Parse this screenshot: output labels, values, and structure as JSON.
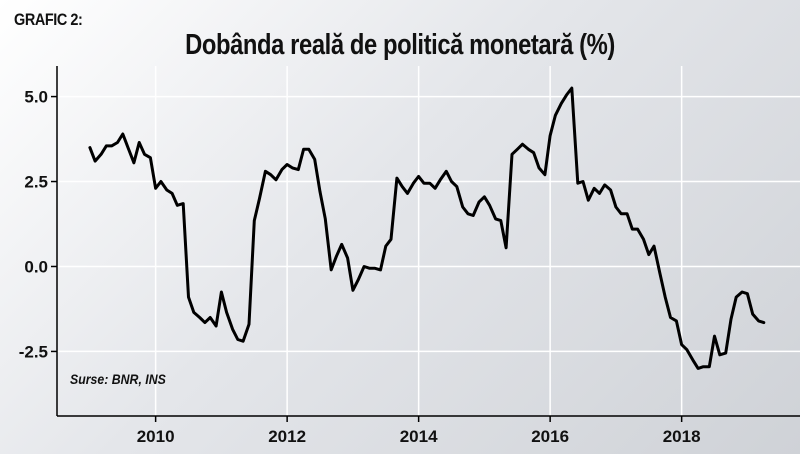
{
  "header": {
    "tag": "GRAFIC 2:",
    "title": "Dobânda reală de politică monetară (%)"
  },
  "source": "Surse: BNR, INS",
  "colors": {
    "line": "#000000",
    "grid": "#ffffff",
    "axis": "#000000"
  },
  "chart_data": {
    "type": "line",
    "title": "Dobânda reală de politică monetară (%)",
    "xlabel": "",
    "ylabel": "",
    "xlim": [
      2008.5,
      2019.8
    ],
    "ylim": [
      -4.4,
      5.9
    ],
    "grid": true,
    "y_ticks": [
      5.0,
      2.5,
      0.0,
      -2.5
    ],
    "y_tick_labels": [
      "5.0",
      "2.5",
      "0.0",
      "-2.5"
    ],
    "x_ticks": [
      2010,
      2012,
      2014,
      2016,
      2018
    ],
    "x_tick_labels": [
      "2010",
      "2012",
      "2014",
      "2016",
      "2018"
    ],
    "series": [
      {
        "x": [
          2009.0,
          2009.08,
          2009.17,
          2009.25,
          2009.33,
          2009.42,
          2009.5,
          2009.58,
          2009.67,
          2009.75,
          2009.83,
          2009.92,
          2010.0,
          2010.08,
          2010.17,
          2010.25,
          2010.33,
          2010.42,
          2010.5,
          2010.58,
          2010.67,
          2010.75,
          2010.83,
          2010.92,
          2011.0,
          2011.08,
          2011.17,
          2011.25,
          2011.33,
          2011.42,
          2011.5,
          2011.58,
          2011.67,
          2011.75,
          2011.83,
          2011.92,
          2012.0,
          2012.08,
          2012.17,
          2012.25,
          2012.33,
          2012.42,
          2012.5,
          2012.58,
          2012.67,
          2012.75,
          2012.83,
          2012.92,
          2013.0,
          2013.08,
          2013.17,
          2013.25,
          2013.33,
          2013.42,
          2013.5,
          2013.58,
          2013.67,
          2013.75,
          2013.83,
          2013.92,
          2014.0,
          2014.08,
          2014.17,
          2014.25,
          2014.33,
          2014.42,
          2014.5,
          2014.58,
          2014.67,
          2014.75,
          2014.83,
          2014.92,
          2015.0,
          2015.08,
          2015.17,
          2015.25,
          2015.33,
          2015.42,
          2015.5,
          2015.58,
          2015.67,
          2015.75,
          2015.83,
          2015.92,
          2016.0,
          2016.08,
          2016.17,
          2016.25,
          2016.33,
          2016.42,
          2016.5,
          2016.58,
          2016.67,
          2016.75,
          2016.83,
          2016.92,
          2017.0,
          2017.08,
          2017.17,
          2017.25,
          2017.33,
          2017.42,
          2017.5,
          2017.58,
          2017.67,
          2017.75,
          2017.83,
          2017.92,
          2018.0,
          2018.08,
          2018.17,
          2018.25,
          2018.33,
          2018.42,
          2018.5,
          2018.58,
          2018.67,
          2018.75,
          2018.83,
          2018.92,
          2019.0,
          2019.08,
          2019.17,
          2019.25
        ],
        "y": [
          3.5,
          3.1,
          3.3,
          3.55,
          3.55,
          3.65,
          3.9,
          3.5,
          3.05,
          3.65,
          3.3,
          3.2,
          2.3,
          2.5,
          2.25,
          2.15,
          1.8,
          1.85,
          -0.9,
          -1.35,
          -1.5,
          -1.65,
          -1.5,
          -1.75,
          -0.75,
          -1.35,
          -1.85,
          -2.15,
          -2.2,
          -1.7,
          1.35,
          2.0,
          2.8,
          2.7,
          2.55,
          2.85,
          3.0,
          2.9,
          2.85,
          3.45,
          3.45,
          3.15,
          2.2,
          1.4,
          -0.1,
          0.3,
          0.65,
          0.25,
          -0.7,
          -0.4,
          0.0,
          -0.05,
          -0.05,
          -0.1,
          0.6,
          0.8,
          2.6,
          2.35,
          2.15,
          2.45,
          2.65,
          2.45,
          2.45,
          2.3,
          2.55,
          2.8,
          2.5,
          2.35,
          1.75,
          1.55,
          1.5,
          1.9,
          2.05,
          1.8,
          1.4,
          1.35,
          0.55,
          3.3,
          3.45,
          3.6,
          3.45,
          3.35,
          2.9,
          2.7,
          3.85,
          4.45,
          4.8,
          5.05,
          5.25,
          2.45,
          2.5,
          1.95,
          2.3,
          2.15,
          2.4,
          2.25,
          1.75,
          1.55,
          1.55,
          1.1,
          1.1,
          0.8,
          0.35,
          0.6,
          -0.2,
          -0.9,
          -1.5,
          -1.6,
          -2.3,
          -2.45,
          -2.75,
          -3.0,
          -2.95,
          -2.95,
          -2.05,
          -2.6,
          -2.55,
          -1.55,
          -0.9,
          -0.75,
          -0.8,
          -1.4,
          -1.6,
          -1.65
        ]
      }
    ]
  }
}
